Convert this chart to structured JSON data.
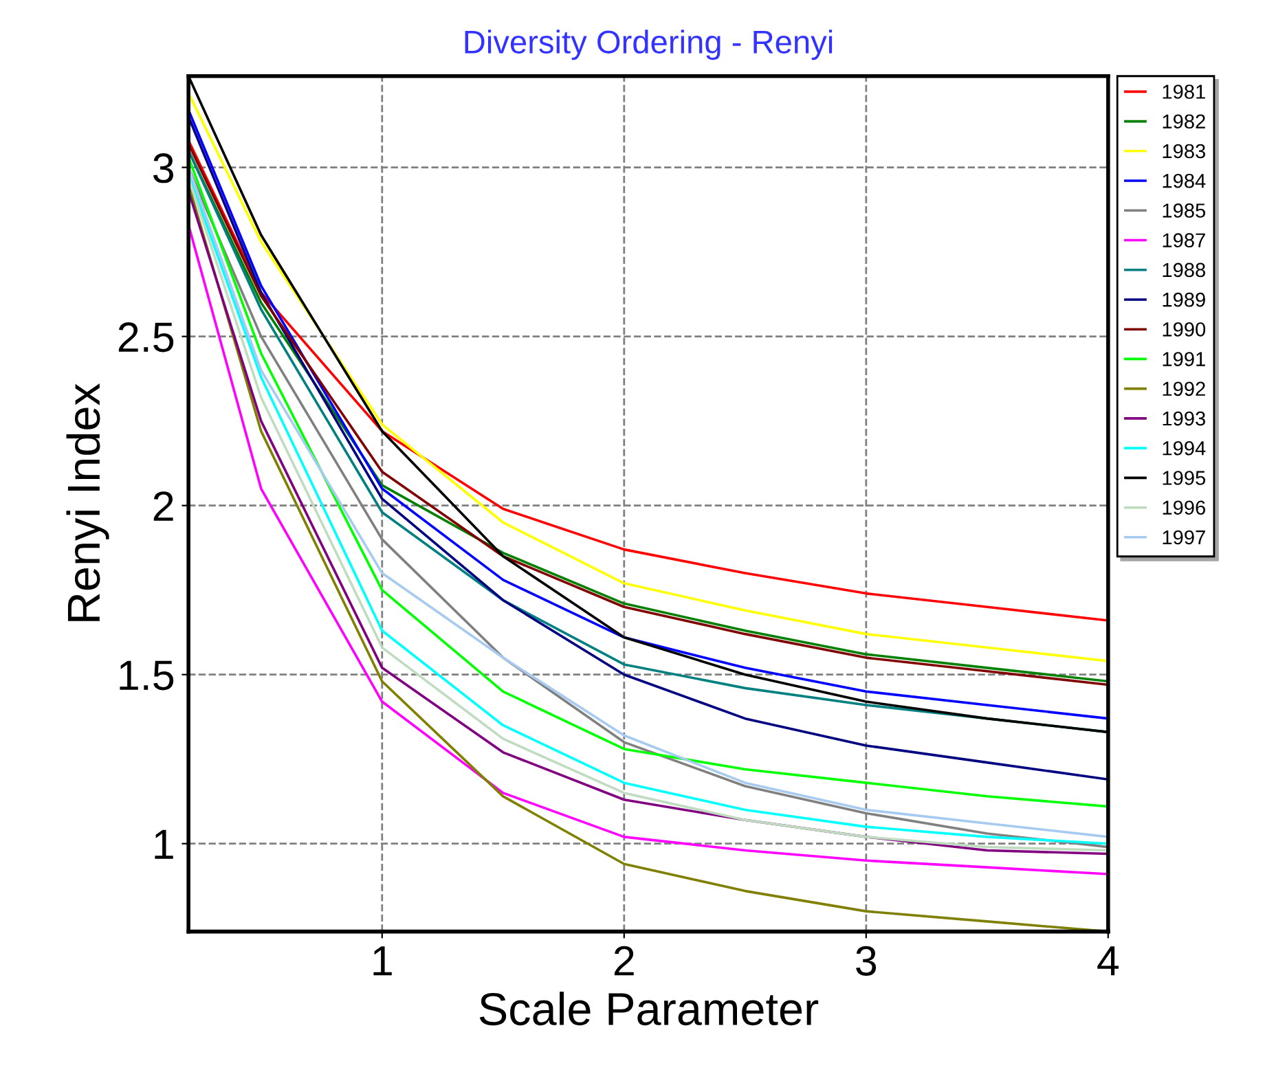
{
  "chart_data": {
    "type": "line",
    "title": "Diversity Ordering - Renyi",
    "xlabel": "Scale Parameter",
    "ylabel": "Renyi Index",
    "x": [
      0.2,
      0.5,
      1,
      1.5,
      2,
      2.5,
      3,
      3.5,
      4
    ],
    "xlim": [
      0.2,
      4
    ],
    "ylim": [
      0.74,
      3.27
    ],
    "xticks": [
      1,
      2,
      3,
      4
    ],
    "yticks": [
      1,
      1.5,
      2,
      2.5,
      3
    ],
    "grid": true,
    "legend": "top right",
    "marker": "none",
    "line_style": "solid",
    "series": [
      {
        "name": "1981",
        "color": "#ff0000",
        "values": [
          3.08,
          2.63,
          2.22,
          1.99,
          1.87,
          1.8,
          1.74,
          1.7,
          1.66
        ]
      },
      {
        "name": "1982",
        "color": "#008000",
        "values": [
          3.05,
          2.6,
          2.06,
          1.86,
          1.71,
          1.63,
          1.56,
          1.52,
          1.48
        ]
      },
      {
        "name": "1983",
        "color": "#ffff00",
        "values": [
          3.22,
          2.78,
          2.24,
          1.95,
          1.77,
          1.69,
          1.62,
          1.58,
          1.54
        ]
      },
      {
        "name": "1984",
        "color": "#0000ff",
        "values": [
          3.17,
          2.65,
          2.05,
          1.78,
          1.61,
          1.52,
          1.45,
          1.41,
          1.37
        ]
      },
      {
        "name": "1985",
        "color": "#808080",
        "values": [
          3.0,
          2.5,
          1.9,
          1.55,
          1.3,
          1.17,
          1.09,
          1.03,
          0.99
        ]
      },
      {
        "name": "1987",
        "color": "#ff00ff",
        "values": [
          2.83,
          2.05,
          1.42,
          1.15,
          1.02,
          0.98,
          0.95,
          0.93,
          0.91
        ]
      },
      {
        "name": "1988",
        "color": "#008080",
        "values": [
          3.05,
          2.58,
          1.98,
          1.72,
          1.53,
          1.46,
          1.41,
          1.37,
          1.33
        ]
      },
      {
        "name": "1989",
        "color": "#000080",
        "values": [
          3.15,
          2.63,
          2.02,
          1.72,
          1.5,
          1.37,
          1.29,
          1.24,
          1.19
        ]
      },
      {
        "name": "1990",
        "color": "#800000",
        "values": [
          3.07,
          2.62,
          2.1,
          1.85,
          1.7,
          1.62,
          1.55,
          1.51,
          1.47
        ]
      },
      {
        "name": "1991",
        "color": "#00ff00",
        "values": [
          3.03,
          2.45,
          1.75,
          1.45,
          1.28,
          1.22,
          1.18,
          1.14,
          1.11
        ]
      },
      {
        "name": "1992",
        "color": "#808000",
        "values": [
          2.95,
          2.22,
          1.48,
          1.14,
          0.94,
          0.86,
          0.8,
          0.77,
          0.74
        ]
      },
      {
        "name": "1993",
        "color": "#800080",
        "values": [
          2.93,
          2.25,
          1.52,
          1.27,
          1.13,
          1.07,
          1.02,
          0.98,
          0.97
        ]
      },
      {
        "name": "1994",
        "color": "#00ffff",
        "values": [
          2.98,
          2.38,
          1.63,
          1.35,
          1.18,
          1.1,
          1.05,
          1.02,
          1.0
        ]
      },
      {
        "name": "1995",
        "color": "#000000",
        "values": [
          3.27,
          2.8,
          2.22,
          1.85,
          1.61,
          1.5,
          1.42,
          1.37,
          1.33
        ]
      },
      {
        "name": "1996",
        "color": "#c0dcc0",
        "values": [
          2.97,
          2.32,
          1.58,
          1.31,
          1.15,
          1.07,
          1.02,
          0.99,
          0.98
        ]
      },
      {
        "name": "1997",
        "color": "#a6caf0",
        "values": [
          3.0,
          2.4,
          1.8,
          1.55,
          1.32,
          1.18,
          1.1,
          1.06,
          1.02
        ]
      }
    ]
  }
}
